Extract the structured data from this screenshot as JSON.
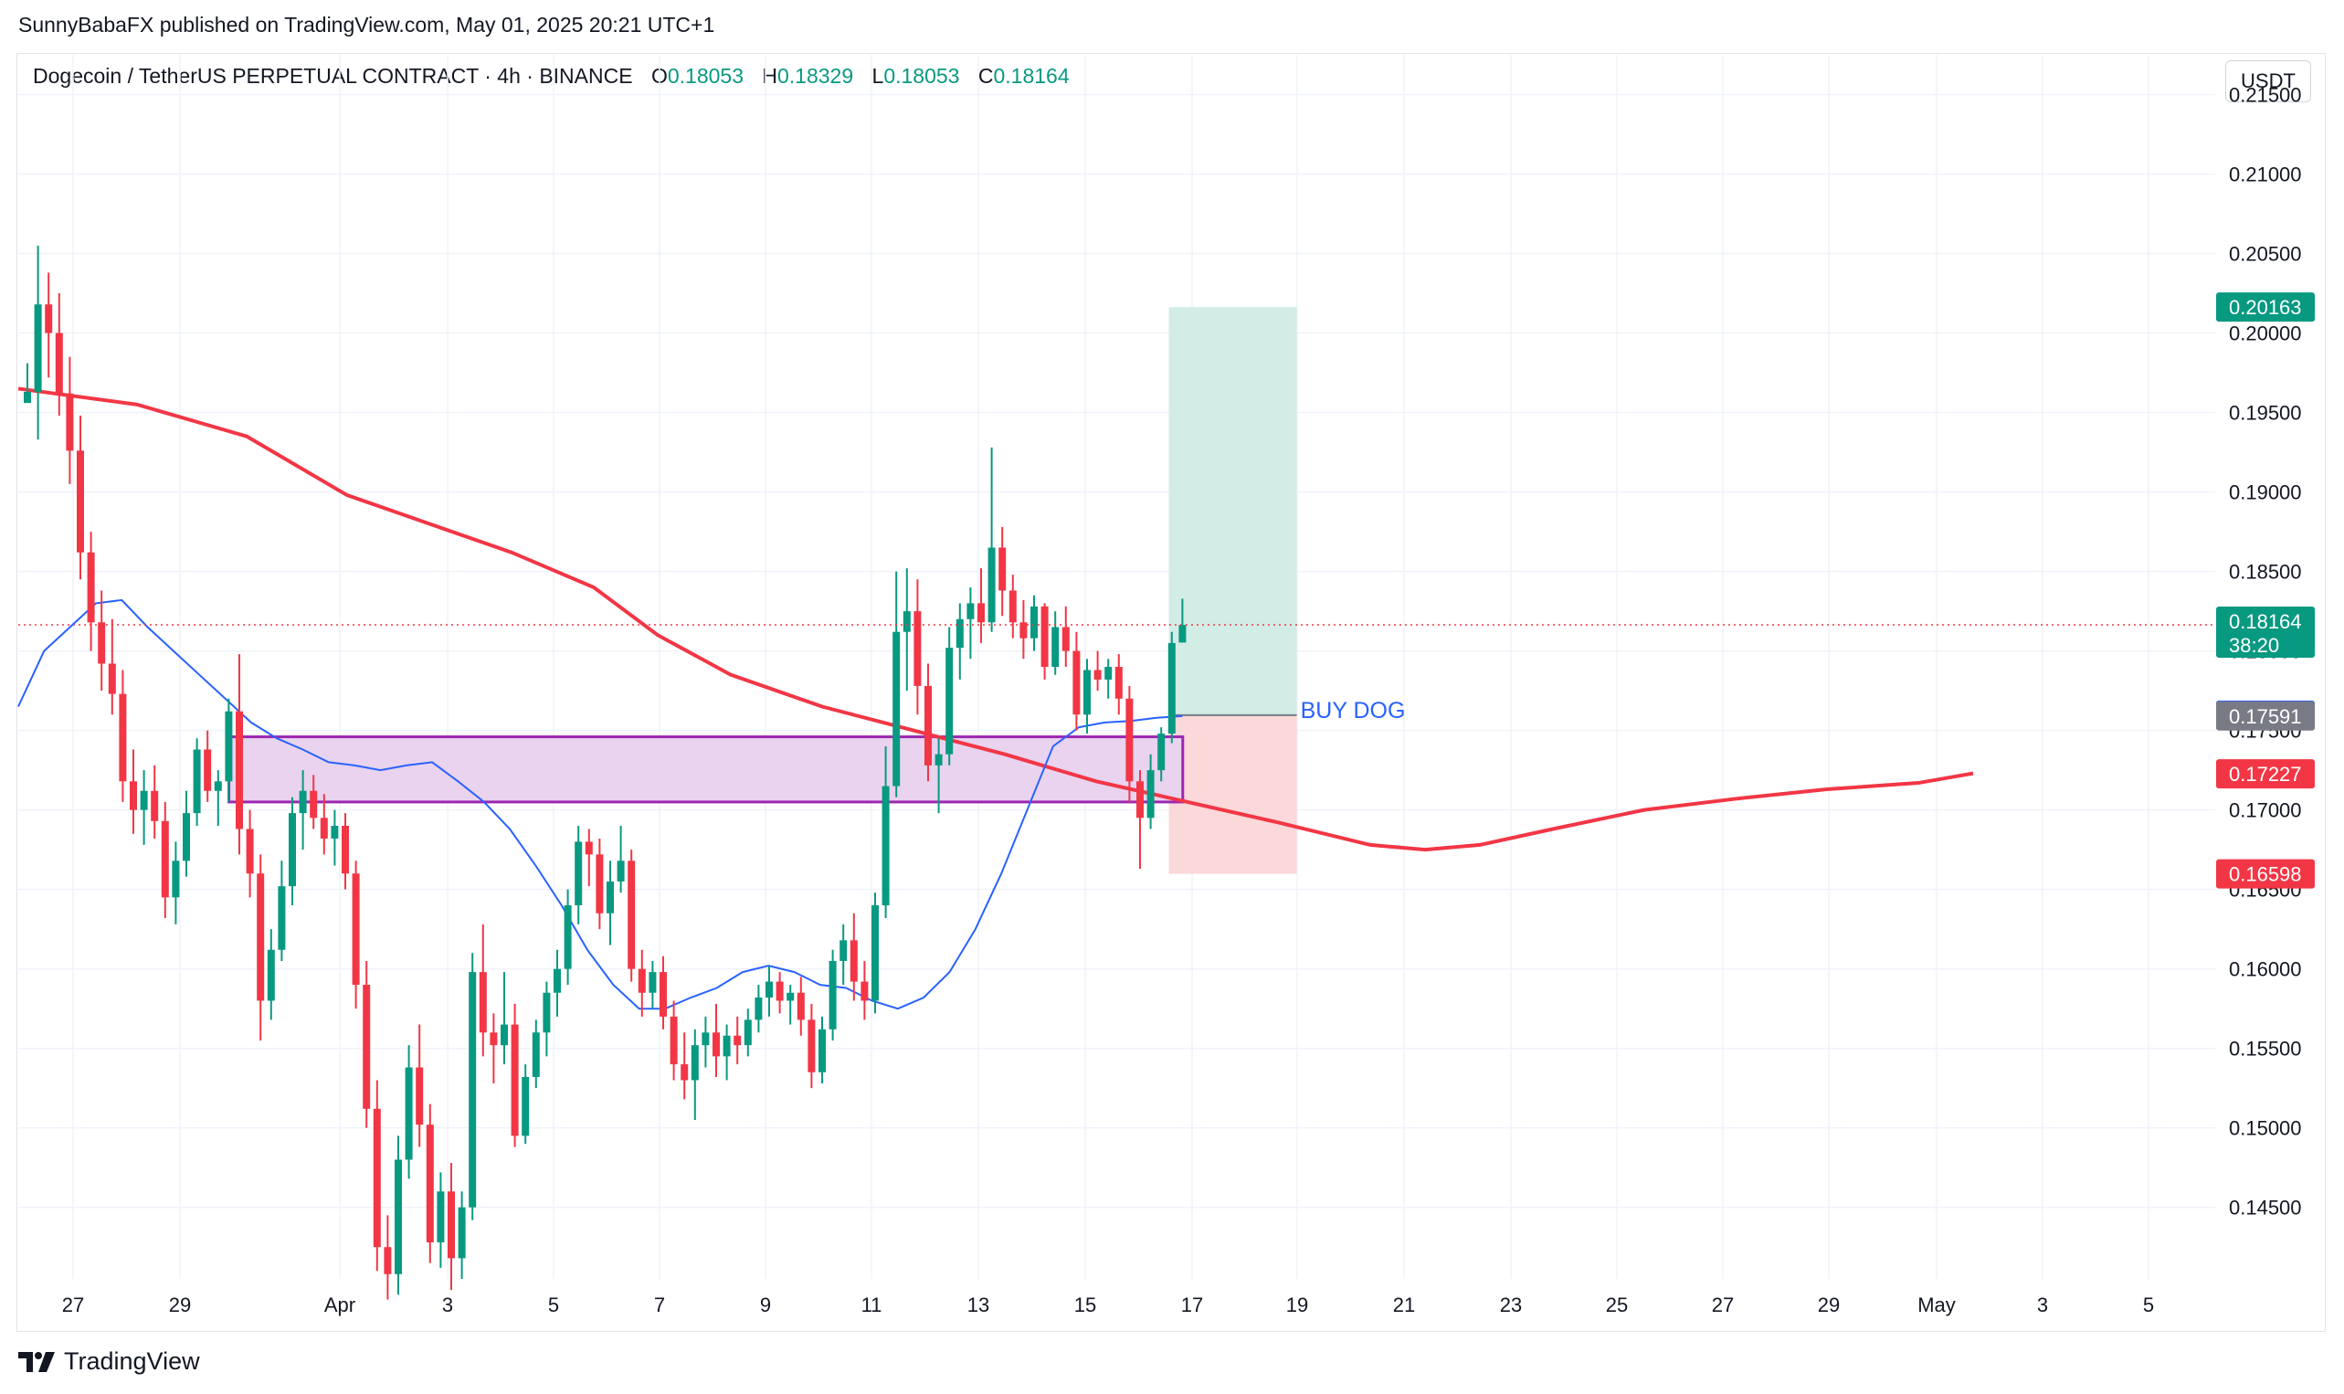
{
  "header": {
    "published_line": "SunnyBabaFX published on TradingView.com, May 01, 2025 20:21 UTC+1"
  },
  "legend": {
    "symbol": "Dogecoin / TetherUS PERPETUAL CONTRACT · 4h · BINANCE",
    "open_label": "O",
    "open": "0.18053",
    "high_label": "H",
    "high": "0.18329",
    "low_label": "L",
    "low": "0.18053",
    "close_label": "C",
    "close": "0.18164"
  },
  "currency_button": "USDT",
  "footer": {
    "brand": "TradingView"
  },
  "chart_data": {
    "type": "candlestick",
    "timeframe": "4h",
    "x_ticks": [
      "27",
      "29",
      "Apr",
      "3",
      "5",
      "7",
      "9",
      "11",
      "13",
      "15",
      "17",
      "19",
      "21",
      "23",
      "25",
      "27",
      "29",
      "May",
      "3",
      "5"
    ],
    "y_ticks": [
      "0.21500",
      "0.21000",
      "0.20500",
      "0.20000",
      "0.19500",
      "0.19000",
      "0.18500",
      "0.18000",
      "0.17500",
      "0.17000",
      "0.16500",
      "0.16000",
      "0.15500",
      "0.15000",
      "0.14500"
    ],
    "y_range": [
      0.1405,
      0.2175
    ],
    "price_labels": [
      {
        "text": "0.20163",
        "value": 0.20163,
        "color": "#089981",
        "kind": "target"
      },
      {
        "text": "0.18164",
        "sub": "38:20",
        "value": 0.18164,
        "color": "#089981",
        "kind": "last"
      },
      {
        "text": "0.17596",
        "value": 0.17596,
        "color": "#2962ff",
        "kind": "entry"
      },
      {
        "text": "0.17591",
        "value": 0.17591,
        "color": "#787b86",
        "kind": "ma"
      },
      {
        "text": "0.17227",
        "value": 0.17227,
        "color": "#f23645",
        "kind": "ma200"
      },
      {
        "text": "0.16598",
        "value": 0.16598,
        "color": "#f23645",
        "kind": "stop"
      }
    ],
    "position": {
      "label": "BUY DOG",
      "entry": 0.17596,
      "target": 0.20163,
      "stop": 0.16598,
      "start": "May 1",
      "end": "May 4",
      "profit_color": "#d2ece6",
      "loss_color": "#fbd8da"
    },
    "demand_zone": {
      "top": 0.1746,
      "bottom": 0.1705,
      "start": "Apr 1",
      "end": "May 1",
      "fill": "#e9d3ef",
      "border": "#9c27b0"
    },
    "last_price": 0.18164,
    "candles": [
      {
        "d": "Mar 26",
        "o": 0.1956,
        "h": 0.1981,
        "l": 0.1958,
        "c": 0.1963
      },
      {
        "d": "Mar 27",
        "o": 0.1963,
        "h": 0.2055,
        "l": 0.1933,
        "c": 0.2018
      },
      {
        "d": "Mar 27",
        "o": 0.2018,
        "h": 0.2038,
        "l": 0.1972,
        "c": 0.2
      },
      {
        "d": "Mar 27",
        "o": 0.2,
        "h": 0.2025,
        "l": 0.1948,
        "c": 0.1962
      },
      {
        "d": "Mar 28",
        "o": 0.1962,
        "h": 0.1985,
        "l": 0.1905,
        "c": 0.1926
      },
      {
        "d": "Mar 28",
        "o": 0.1926,
        "h": 0.1948,
        "l": 0.1845,
        "c": 0.1862
      },
      {
        "d": "Mar 28",
        "o": 0.1862,
        "h": 0.1875,
        "l": 0.18,
        "c": 0.1818
      },
      {
        "d": "Mar 29",
        "o": 0.1818,
        "h": 0.1838,
        "l": 0.1775,
        "c": 0.1792
      },
      {
        "d": "Mar 29",
        "o": 0.1792,
        "h": 0.182,
        "l": 0.176,
        "c": 0.1773
      },
      {
        "d": "Mar 29",
        "o": 0.1773,
        "h": 0.1788,
        "l": 0.1705,
        "c": 0.1718
      },
      {
        "d": "Mar 30",
        "o": 0.1718,
        "h": 0.1738,
        "l": 0.1685,
        "c": 0.17
      },
      {
        "d": "Mar 30",
        "o": 0.17,
        "h": 0.1725,
        "l": 0.1678,
        "c": 0.1712
      },
      {
        "d": "Mar 30",
        "o": 0.1712,
        "h": 0.1728,
        "l": 0.1682,
        "c": 0.1693
      },
      {
        "d": "Mar 31",
        "o": 0.1693,
        "h": 0.1705,
        "l": 0.1632,
        "c": 0.1645
      },
      {
        "d": "Mar 31",
        "o": 0.1645,
        "h": 0.168,
        "l": 0.1628,
        "c": 0.1668
      },
      {
        "d": "Mar 31",
        "o": 0.1668,
        "h": 0.1712,
        "l": 0.1658,
        "c": 0.1698
      },
      {
        "d": "Apr 1",
        "o": 0.1698,
        "h": 0.1745,
        "l": 0.169,
        "c": 0.1738
      },
      {
        "d": "Apr 1",
        "o": 0.1738,
        "h": 0.175,
        "l": 0.1705,
        "c": 0.1712
      },
      {
        "d": "Apr 1",
        "o": 0.1712,
        "h": 0.1725,
        "l": 0.169,
        "c": 0.1718
      },
      {
        "d": "Apr 2",
        "o": 0.1718,
        "h": 0.177,
        "l": 0.1705,
        "c": 0.1762
      },
      {
        "d": "Apr 2",
        "o": 0.1762,
        "h": 0.1798,
        "l": 0.1672,
        "c": 0.1688
      },
      {
        "d": "Apr 2",
        "o": 0.1688,
        "h": 0.17,
        "l": 0.1645,
        "c": 0.166
      },
      {
        "d": "Apr 3",
        "o": 0.166,
        "h": 0.1672,
        "l": 0.1555,
        "c": 0.158
      },
      {
        "d": "Apr 3",
        "o": 0.158,
        "h": 0.1625,
        "l": 0.1568,
        "c": 0.1612
      },
      {
        "d": "Apr 3",
        "o": 0.1612,
        "h": 0.1668,
        "l": 0.1605,
        "c": 0.1652
      },
      {
        "d": "Apr 4",
        "o": 0.1652,
        "h": 0.1708,
        "l": 0.164,
        "c": 0.1698
      },
      {
        "d": "Apr 4",
        "o": 0.1698,
        "h": 0.1725,
        "l": 0.1675,
        "c": 0.1712
      },
      {
        "d": "Apr 4",
        "o": 0.1712,
        "h": 0.1722,
        "l": 0.1688,
        "c": 0.1695
      },
      {
        "d": "Apr 5",
        "o": 0.1695,
        "h": 0.171,
        "l": 0.1672,
        "c": 0.1682
      },
      {
        "d": "Apr 5",
        "o": 0.1682,
        "h": 0.17,
        "l": 0.1665,
        "c": 0.169
      },
      {
        "d": "Apr 5",
        "o": 0.169,
        "h": 0.1698,
        "l": 0.165,
        "c": 0.166
      },
      {
        "d": "Apr 6",
        "o": 0.166,
        "h": 0.1668,
        "l": 0.1575,
        "c": 0.159
      },
      {
        "d": "Apr 6",
        "o": 0.159,
        "h": 0.1605,
        "l": 0.15,
        "c": 0.1512
      },
      {
        "d": "Apr 6",
        "o": 0.1512,
        "h": 0.153,
        "l": 0.141,
        "c": 0.1425
      },
      {
        "d": "Apr 7",
        "o": 0.1425,
        "h": 0.1445,
        "l": 0.1392,
        "c": 0.1408
      },
      {
        "d": "Apr 7",
        "o": 0.1408,
        "h": 0.1495,
        "l": 0.1395,
        "c": 0.148
      },
      {
        "d": "Apr 7",
        "o": 0.148,
        "h": 0.1552,
        "l": 0.1468,
        "c": 0.1538
      },
      {
        "d": "Apr 8",
        "o": 0.1538,
        "h": 0.1565,
        "l": 0.1488,
        "c": 0.1502
      },
      {
        "d": "Apr 8",
        "o": 0.1502,
        "h": 0.1515,
        "l": 0.1415,
        "c": 0.1428
      },
      {
        "d": "Apr 8",
        "o": 0.1428,
        "h": 0.1472,
        "l": 0.1412,
        "c": 0.146
      },
      {
        "d": "Apr 9",
        "o": 0.146,
        "h": 0.1478,
        "l": 0.1398,
        "c": 0.1418
      },
      {
        "d": "Apr 9",
        "o": 0.1418,
        "h": 0.146,
        "l": 0.1405,
        "c": 0.145
      },
      {
        "d": "Apr 9",
        "o": 0.145,
        "h": 0.161,
        "l": 0.1442,
        "c": 0.1598
      },
      {
        "d": "Apr 10",
        "o": 0.1598,
        "h": 0.1628,
        "l": 0.1545,
        "c": 0.156
      },
      {
        "d": "Apr 10",
        "o": 0.156,
        "h": 0.1572,
        "l": 0.1528,
        "c": 0.1552
      },
      {
        "d": "Apr 10",
        "o": 0.1552,
        "h": 0.1598,
        "l": 0.154,
        "c": 0.1565
      },
      {
        "d": "Apr 11",
        "o": 0.1565,
        "h": 0.1578,
        "l": 0.1488,
        "c": 0.1495
      },
      {
        "d": "Apr 11",
        "o": 0.1495,
        "h": 0.154,
        "l": 0.149,
        "c": 0.1532
      },
      {
        "d": "Apr 11",
        "o": 0.1532,
        "h": 0.1568,
        "l": 0.1525,
        "c": 0.156
      },
      {
        "d": "Apr 12",
        "o": 0.156,
        "h": 0.1592,
        "l": 0.1545,
        "c": 0.1585
      },
      {
        "d": "Apr 12",
        "o": 0.1585,
        "h": 0.1612,
        "l": 0.157,
        "c": 0.16
      },
      {
        "d": "Apr 12",
        "o": 0.16,
        "h": 0.165,
        "l": 0.159,
        "c": 0.164
      },
      {
        "d": "Apr 13",
        "o": 0.164,
        "h": 0.169,
        "l": 0.1628,
        "c": 0.168
      },
      {
        "d": "Apr 13",
        "o": 0.168,
        "h": 0.1688,
        "l": 0.1652,
        "c": 0.1672
      },
      {
        "d": "Apr 13",
        "o": 0.1672,
        "h": 0.1682,
        "l": 0.1625,
        "c": 0.1635
      },
      {
        "d": "Apr 14",
        "o": 0.1635,
        "h": 0.1668,
        "l": 0.1615,
        "c": 0.1655
      },
      {
        "d": "Apr 14",
        "o": 0.1655,
        "h": 0.169,
        "l": 0.1648,
        "c": 0.1668
      },
      {
        "d": "Apr 14",
        "o": 0.1668,
        "h": 0.1675,
        "l": 0.1592,
        "c": 0.16
      },
      {
        "d": "Apr 15",
        "o": 0.16,
        "h": 0.1612,
        "l": 0.157,
        "c": 0.1585
      },
      {
        "d": "Apr 15",
        "o": 0.1585,
        "h": 0.1605,
        "l": 0.1575,
        "c": 0.1598
      },
      {
        "d": "Apr 15",
        "o": 0.1598,
        "h": 0.1608,
        "l": 0.1562,
        "c": 0.157
      },
      {
        "d": "Apr 16",
        "o": 0.157,
        "h": 0.158,
        "l": 0.153,
        "c": 0.154
      },
      {
        "d": "Apr 16",
        "o": 0.154,
        "h": 0.156,
        "l": 0.1518,
        "c": 0.153
      },
      {
        "d": "Apr 16",
        "o": 0.153,
        "h": 0.1562,
        "l": 0.1505,
        "c": 0.1552
      },
      {
        "d": "Apr 17",
        "o": 0.1552,
        "h": 0.157,
        "l": 0.1538,
        "c": 0.156
      },
      {
        "d": "Apr 17",
        "o": 0.156,
        "h": 0.1578,
        "l": 0.1532,
        "c": 0.1545
      },
      {
        "d": "Apr 17",
        "o": 0.1545,
        "h": 0.1565,
        "l": 0.153,
        "c": 0.1558
      },
      {
        "d": "Apr 18",
        "o": 0.1558,
        "h": 0.157,
        "l": 0.154,
        "c": 0.1552
      },
      {
        "d": "Apr 18",
        "o": 0.1552,
        "h": 0.1575,
        "l": 0.1545,
        "c": 0.1568
      },
      {
        "d": "Apr 18",
        "o": 0.1568,
        "h": 0.159,
        "l": 0.156,
        "c": 0.1582
      },
      {
        "d": "Apr 19",
        "o": 0.1582,
        "h": 0.1602,
        "l": 0.157,
        "c": 0.1592
      },
      {
        "d": "Apr 19",
        "o": 0.1592,
        "h": 0.1598,
        "l": 0.1572,
        "c": 0.158
      },
      {
        "d": "Apr 19",
        "o": 0.158,
        "h": 0.159,
        "l": 0.1565,
        "c": 0.1585
      },
      {
        "d": "Apr 20",
        "o": 0.1585,
        "h": 0.1595,
        "l": 0.1558,
        "c": 0.1568
      },
      {
        "d": "Apr 20",
        "o": 0.1568,
        "h": 0.1578,
        "l": 0.1525,
        "c": 0.1535
      },
      {
        "d": "Apr 20",
        "o": 0.1535,
        "h": 0.157,
        "l": 0.1528,
        "c": 0.1562
      },
      {
        "d": "Apr 21",
        "o": 0.1562,
        "h": 0.1612,
        "l": 0.1555,
        "c": 0.1605
      },
      {
        "d": "Apr 21",
        "o": 0.1605,
        "h": 0.1628,
        "l": 0.159,
        "c": 0.1618
      },
      {
        "d": "Apr 21",
        "o": 0.1618,
        "h": 0.1635,
        "l": 0.158,
        "c": 0.1592
      },
      {
        "d": "Apr 22",
        "o": 0.1592,
        "h": 0.1605,
        "l": 0.1568,
        "c": 0.158
      },
      {
        "d": "Apr 22",
        "o": 0.158,
        "h": 0.1648,
        "l": 0.1572,
        "c": 0.164
      },
      {
        "d": "Apr 22",
        "o": 0.164,
        "h": 0.174,
        "l": 0.1632,
        "c": 0.1715
      },
      {
        "d": "Apr 23",
        "o": 0.1715,
        "h": 0.185,
        "l": 0.1708,
        "c": 0.1812
      },
      {
        "d": "Apr 23",
        "o": 0.1812,
        "h": 0.1852,
        "l": 0.1775,
        "c": 0.1825
      },
      {
        "d": "Apr 23",
        "o": 0.1825,
        "h": 0.1845,
        "l": 0.176,
        "c": 0.1778
      },
      {
        "d": "Apr 24",
        "o": 0.1778,
        "h": 0.1792,
        "l": 0.1718,
        "c": 0.1728
      },
      {
        "d": "Apr 24",
        "o": 0.1728,
        "h": 0.1745,
        "l": 0.1698,
        "c": 0.1735
      },
      {
        "d": "Apr 24",
        "o": 0.1735,
        "h": 0.1815,
        "l": 0.1728,
        "c": 0.1802
      },
      {
        "d": "Apr 25",
        "o": 0.1802,
        "h": 0.183,
        "l": 0.1782,
        "c": 0.182
      },
      {
        "d": "Apr 25",
        "o": 0.182,
        "h": 0.184,
        "l": 0.1795,
        "c": 0.183
      },
      {
        "d": "Apr 25",
        "o": 0.183,
        "h": 0.1852,
        "l": 0.1805,
        "c": 0.1818
      },
      {
        "d": "Apr 26",
        "o": 0.1818,
        "h": 0.1928,
        "l": 0.1812,
        "c": 0.1865
      },
      {
        "d": "Apr 26",
        "o": 0.1865,
        "h": 0.1878,
        "l": 0.1822,
        "c": 0.1838
      },
      {
        "d": "Apr 26",
        "o": 0.1838,
        "h": 0.1848,
        "l": 0.1808,
        "c": 0.1818
      },
      {
        "d": "Apr 27",
        "o": 0.1818,
        "h": 0.1832,
        "l": 0.1795,
        "c": 0.1808
      },
      {
        "d": "Apr 27",
        "o": 0.1808,
        "h": 0.1835,
        "l": 0.18,
        "c": 0.1828
      },
      {
        "d": "Apr 27",
        "o": 0.1828,
        "h": 0.183,
        "l": 0.1782,
        "c": 0.179
      },
      {
        "d": "Apr 28",
        "o": 0.179,
        "h": 0.1825,
        "l": 0.1785,
        "c": 0.1815
      },
      {
        "d": "Apr 28",
        "o": 0.1815,
        "h": 0.1828,
        "l": 0.179,
        "c": 0.18
      },
      {
        "d": "Apr 28",
        "o": 0.18,
        "h": 0.1812,
        "l": 0.175,
        "c": 0.176
      },
      {
        "d": "Apr 29",
        "o": 0.176,
        "h": 0.1795,
        "l": 0.1748,
        "c": 0.1788
      },
      {
        "d": "Apr 29",
        "o": 0.1788,
        "h": 0.18,
        "l": 0.1775,
        "c": 0.1782
      },
      {
        "d": "Apr 29",
        "o": 0.1782,
        "h": 0.1795,
        "l": 0.177,
        "c": 0.179
      },
      {
        "d": "Apr 30",
        "o": 0.179,
        "h": 0.1798,
        "l": 0.176,
        "c": 0.177
      },
      {
        "d": "Apr 30",
        "o": 0.177,
        "h": 0.1778,
        "l": 0.1705,
        "c": 0.1718
      },
      {
        "d": "Apr 30",
        "o": 0.1718,
        "h": 0.1725,
        "l": 0.1663,
        "c": 0.1695
      },
      {
        "d": "May 1",
        "o": 0.1695,
        "h": 0.1735,
        "l": 0.1688,
        "c": 0.1725
      },
      {
        "d": "May 1",
        "o": 0.1725,
        "h": 0.1752,
        "l": 0.1718,
        "c": 0.1748
      },
      {
        "d": "May 1",
        "o": 0.1748,
        "h": 0.1812,
        "l": 0.1742,
        "c": 0.1805
      },
      {
        "d": "May 1",
        "o": 0.18053,
        "h": 0.18329,
        "l": 0.18053,
        "c": 0.18164
      }
    ],
    "ema_fast": {
      "name": "",
      "color": "#2962ff",
      "values": [
        0.1765,
        0.18,
        0.1815,
        0.183,
        0.1832,
        0.1815,
        0.18,
        0.1785,
        0.177,
        0.1755,
        0.1745,
        0.1738,
        0.173,
        0.1728,
        0.1725,
        0.1728,
        0.173,
        0.1718,
        0.1705,
        0.1688,
        0.1665,
        0.164,
        0.1612,
        0.159,
        0.1575,
        0.1575,
        0.1582,
        0.1588,
        0.1598,
        0.1602,
        0.1598,
        0.159,
        0.1588,
        0.158,
        0.1575,
        0.1582,
        0.1598,
        0.1625,
        0.166,
        0.17,
        0.174,
        0.1752,
        0.1755,
        0.1756,
        0.1758,
        0.1759
      ]
    }
  }
}
